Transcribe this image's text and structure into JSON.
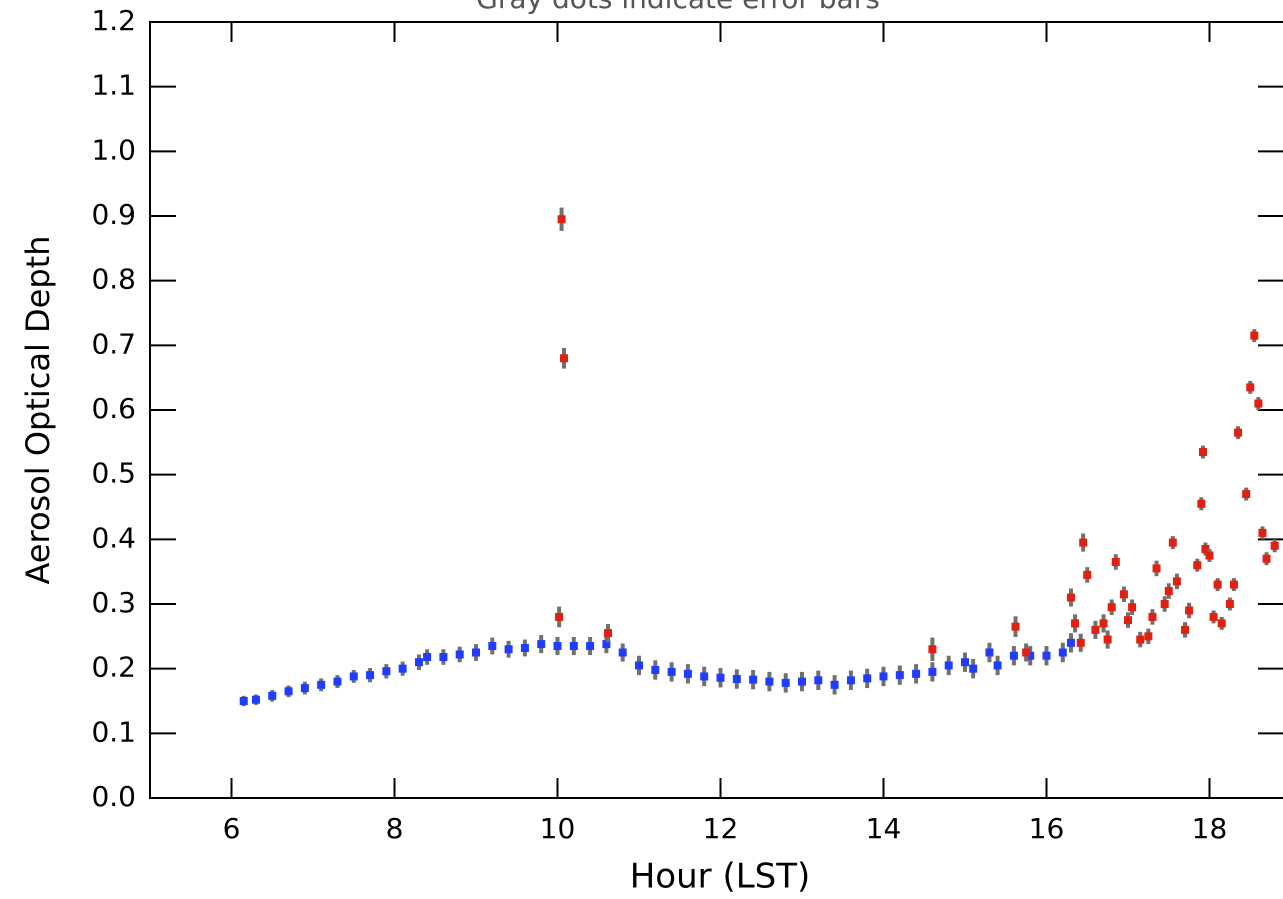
{
  "chart_data": {
    "type": "errorbar-scatter",
    "title": "Gray dots indicate error bars",
    "xlabel": "Hour (LST)",
    "ylabel": "Aerosol Optical Depth",
    "xlim": [
      5,
      18.9
    ],
    "ylim": [
      0,
      1.2
    ],
    "xticks": [
      6,
      8,
      10,
      12,
      14,
      16,
      18
    ],
    "yticks": [
      {
        "value": 0,
        "label": "0.0"
      },
      0.1,
      0.2,
      0.3,
      0.4,
      0.5,
      0.6,
      0.7,
      0.8,
      0.9,
      {
        "value": 1,
        "label": "1.0"
      },
      1.1,
      1.2
    ],
    "error_color": "#707070",
    "series": [
      {
        "color": "#1f3cff",
        "x": [
          6.15,
          6.3,
          6.5,
          6.7,
          6.9,
          7.1,
          7.3,
          7.5,
          7.7,
          7.9,
          8.1,
          8.3,
          8.4,
          8.6,
          8.8,
          9.0,
          9.2,
          9.4,
          9.6,
          9.8,
          10.0,
          10.2,
          10.4,
          10.6,
          10.8,
          11.0,
          11.2,
          11.4,
          11.6,
          11.8,
          12.0,
          12.2,
          12.4,
          12.6,
          12.8,
          13.0,
          13.2,
          13.4,
          13.6,
          13.8,
          14.0,
          14.2,
          14.4,
          14.6,
          14.8,
          15.0,
          15.1,
          15.3,
          15.4,
          15.6,
          15.8,
          16.0,
          16.2,
          16.3
        ],
        "values": [
          0.15,
          0.152,
          0.158,
          0.165,
          0.17,
          0.175,
          0.18,
          0.188,
          0.19,
          0.196,
          0.2,
          0.21,
          0.218,
          0.218,
          0.222,
          0.225,
          0.235,
          0.23,
          0.232,
          0.238,
          0.235,
          0.235,
          0.235,
          0.238,
          0.225,
          0.205,
          0.198,
          0.195,
          0.192,
          0.188,
          0.186,
          0.184,
          0.183,
          0.18,
          0.178,
          0.18,
          0.182,
          0.175,
          0.182,
          0.185,
          0.188,
          0.19,
          0.192,
          0.195,
          0.205,
          0.21,
          0.2,
          0.225,
          0.205,
          0.22,
          0.22,
          0.22,
          0.225,
          0.24
        ],
        "errors": [
          0.008,
          0.008,
          0.009,
          0.009,
          0.01,
          0.01,
          0.01,
          0.01,
          0.011,
          0.011,
          0.011,
          0.012,
          0.012,
          0.012,
          0.012,
          0.013,
          0.013,
          0.013,
          0.013,
          0.014,
          0.014,
          0.014,
          0.014,
          0.014,
          0.014,
          0.015,
          0.015,
          0.015,
          0.015,
          0.015,
          0.015,
          0.015,
          0.015,
          0.015,
          0.015,
          0.015,
          0.015,
          0.015,
          0.015,
          0.015,
          0.015,
          0.015,
          0.015,
          0.015,
          0.015,
          0.015,
          0.015,
          0.015,
          0.015,
          0.015,
          0.015,
          0.015,
          0.015,
          0.015
        ]
      },
      {
        "color": "#e02010",
        "x": [
          10.05,
          10.08,
          10.02,
          10.62,
          14.6,
          15.62,
          15.75,
          16.3,
          16.35,
          16.42,
          16.45,
          16.5,
          16.6,
          16.7,
          16.75,
          16.8,
          16.85,
          16.95,
          17.0,
          17.05,
          17.15,
          17.25,
          17.3,
          17.35,
          17.45,
          17.5,
          17.55,
          17.6,
          17.7,
          17.75,
          17.85,
          17.9,
          17.92,
          17.95,
          18.0,
          18.05,
          18.1,
          18.15,
          18.25,
          18.3,
          18.35,
          18.45,
          18.5,
          18.55,
          18.6,
          18.65,
          18.7,
          18.8
        ],
        "values": [
          0.895,
          0.68,
          0.28,
          0.255,
          0.23,
          0.265,
          0.225,
          0.31,
          0.27,
          0.24,
          0.395,
          0.345,
          0.26,
          0.27,
          0.245,
          0.295,
          0.365,
          0.315,
          0.275,
          0.295,
          0.245,
          0.25,
          0.28,
          0.355,
          0.3,
          0.32,
          0.395,
          0.335,
          0.26,
          0.29,
          0.36,
          0.455,
          0.535,
          0.385,
          0.375,
          0.28,
          0.33,
          0.27,
          0.3,
          0.33,
          0.565,
          0.47,
          0.635,
          0.715,
          0.61,
          0.41,
          0.37,
          0.39
        ],
        "errors": [
          0.018,
          0.016,
          0.016,
          0.014,
          0.018,
          0.016,
          0.014,
          0.014,
          0.014,
          0.014,
          0.014,
          0.012,
          0.014,
          0.014,
          0.014,
          0.012,
          0.012,
          0.012,
          0.012,
          0.012,
          0.012,
          0.012,
          0.012,
          0.012,
          0.012,
          0.012,
          0.01,
          0.012,
          0.012,
          0.012,
          0.01,
          0.01,
          0.01,
          0.01,
          0.01,
          0.01,
          0.01,
          0.01,
          0.01,
          0.01,
          0.01,
          0.01,
          0.01,
          0.01,
          0.01,
          0.01,
          0.01,
          0.01
        ]
      }
    ]
  }
}
